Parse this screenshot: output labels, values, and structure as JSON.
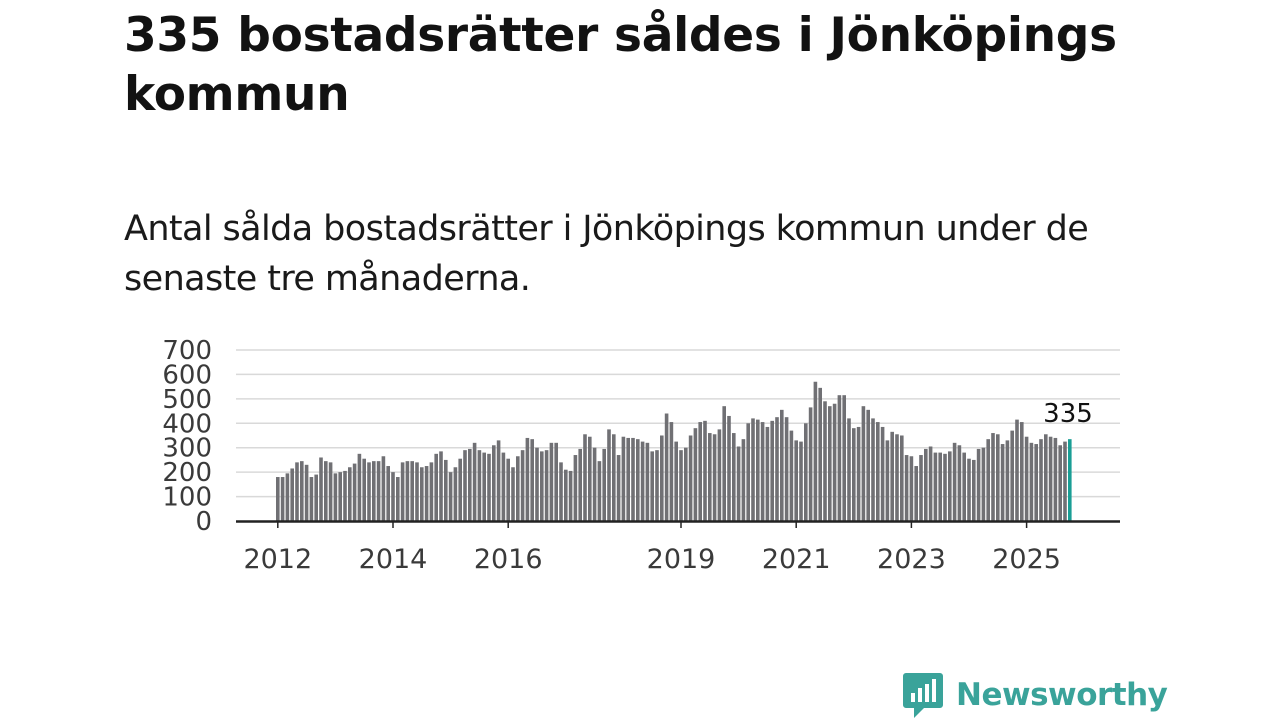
{
  "header": {
    "title": "335 bostadsrätter såldes i Jönköpings kommun",
    "subtitle": "Antal sålda bostadsrätter i Jönköpings kommun under de senaste tre månaderna."
  },
  "chart_data": {
    "type": "bar",
    "title": "335 bostadsrätter såldes i Jönköpings kommun",
    "subtitle": "Antal sålda bostadsrätter i Jönköpings kommun under de senaste tre månaderna.",
    "xlabel": "",
    "ylabel": "",
    "ylim": [
      0,
      700
    ],
    "y_ticks": [
      0,
      100,
      200,
      300,
      400,
      500,
      600,
      700
    ],
    "grid": true,
    "x_tick_labels": [
      {
        "label": "2012",
        "index": 0
      },
      {
        "label": "2014",
        "index": 24
      },
      {
        "label": "2016",
        "index": 48
      },
      {
        "label": "2019",
        "index": 84
      },
      {
        "label": "2021",
        "index": 108
      },
      {
        "label": "2023",
        "index": 132
      },
      {
        "label": "2025",
        "index": 156
      }
    ],
    "highlight_label": "335",
    "highlight_index": 165,
    "bar_color": "#707074",
    "highlight_color": "#1a9e95",
    "values": [
      180,
      180,
      195,
      215,
      240,
      245,
      230,
      180,
      190,
      260,
      245,
      240,
      195,
      200,
      205,
      220,
      235,
      275,
      255,
      240,
      245,
      245,
      265,
      225,
      200,
      180,
      240,
      245,
      245,
      240,
      220,
      225,
      240,
      275,
      285,
      250,
      200,
      220,
      255,
      290,
      295,
      320,
      290,
      280,
      275,
      310,
      330,
      280,
      255,
      220,
      265,
      290,
      340,
      335,
      300,
      285,
      290,
      320,
      320,
      240,
      210,
      205,
      270,
      295,
      355,
      345,
      300,
      245,
      295,
      375,
      355,
      270,
      345,
      340,
      340,
      335,
      325,
      320,
      285,
      290,
      350,
      440,
      405,
      325,
      290,
      300,
      350,
      380,
      405,
      410,
      360,
      355,
      375,
      470,
      430,
      360,
      305,
      335,
      400,
      420,
      415,
      405,
      385,
      410,
      425,
      455,
      425,
      370,
      330,
      325,
      400,
      465,
      570,
      545,
      490,
      470,
      480,
      515,
      515,
      420,
      380,
      385,
      470,
      455,
      420,
      405,
      385,
      330,
      365,
      355,
      350,
      270,
      265,
      225,
      270,
      295,
      305,
      280,
      280,
      275,
      285,
      320,
      310,
      280,
      255,
      250,
      295,
      300,
      335,
      360,
      355,
      315,
      330,
      370,
      415,
      405,
      345,
      320,
      315,
      335,
      355,
      345,
      340,
      310,
      325,
      335
    ]
  },
  "footer": {
    "brand": "Newsworthy",
    "brand_color": "#3aa39a",
    "logo_icon": "newsworthy-logo-icon"
  }
}
